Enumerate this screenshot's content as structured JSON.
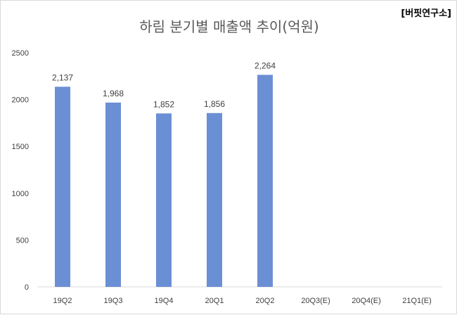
{
  "chart_data": {
    "type": "bar",
    "title": "하림 분기별 매출액 추이(억원)",
    "source": "[버핏연구소]",
    "categories": [
      "19Q2",
      "19Q3",
      "19Q4",
      "20Q1",
      "20Q2",
      "20Q3(E)",
      "20Q4(E)",
      "21Q1(E)"
    ],
    "values": [
      2137,
      1968,
      1852,
      1856,
      2264,
      null,
      null,
      null
    ],
    "data_labels": [
      "2,137",
      "1,968",
      "1,852",
      "1,856",
      "2,264",
      "",
      "",
      ""
    ],
    "ylim": [
      0,
      2500
    ],
    "yticks": [
      0,
      500,
      1000,
      1500,
      2000,
      2500
    ],
    "grid": false,
    "legend": "none",
    "bar_color": "#6b8fd4",
    "axis_color": "#d9d9d9"
  }
}
